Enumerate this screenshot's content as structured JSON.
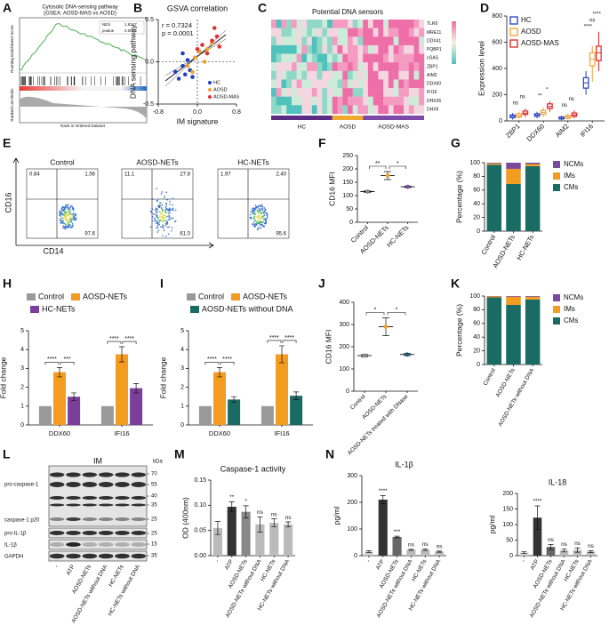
{
  "panels": [
    "A",
    "B",
    "C",
    "D",
    "E",
    "F",
    "G",
    "H",
    "I",
    "J",
    "K",
    "L",
    "M",
    "N"
  ],
  "gsea": {
    "title": "Cytosolic DNA-sensing pathway",
    "subtitle": "(GSEA: AOSD-MAS vs AOSD)",
    "stats": [
      "NES",
      "1.8347",
      "pvalue",
      "0.0015"
    ],
    "ylabel_top": "Running Enrichment Score",
    "ylabel_bottom": "Ranked List Metric",
    "xlabel": "Rank in Ordered Dataset"
  },
  "heatmap": {
    "title": "Potential DNA sensors",
    "rows": [
      "TLR9",
      "MRE11",
      "DDX41",
      "PQBP1",
      "cGAS",
      "ZBP1",
      "AIM2",
      "DDX60",
      "IFI16",
      "DHX36",
      "DHX9"
    ],
    "groups": [
      "HC",
      "AOSD",
      "AOSD-MAS"
    ]
  },
  "flow": {
    "xlabel": "CD14",
    "ylabel": "CD16",
    "plots": [
      {
        "title": "Control",
        "quadrants": [
          "0.84",
          "1.56",
          "97.6"
        ]
      },
      {
        "title": "AOSD-NETs",
        "quadrants": [
          "11.1",
          "27.8",
          "61.0"
        ]
      },
      {
        "title": "HC-NETs",
        "quadrants": [
          "1.97",
          "2.40",
          "95.6"
        ]
      }
    ]
  },
  "blot": {
    "title": "IM",
    "unit": "kDa",
    "bands": [
      "pro-caspase-1",
      "caspase-1 p20",
      "pro-IL-1β",
      "IL-1β",
      "GAPDH"
    ],
    "markers": [
      "70",
      "55",
      "40",
      "35",
      "25",
      "25",
      "15",
      "35"
    ],
    "lanes": [
      "-",
      "ATP",
      "AOSD-NETs",
      "AOSD-NETs without DNA",
      "HC-NETs",
      "HC-NETs without DNA"
    ]
  },
  "chart_data": [
    {
      "type": "scatter",
      "title": "GSVA correlation",
      "xlabel": "IM signature",
      "ylabel": "DNA sensing pathway",
      "annotations": [
        "r = 0.7324",
        "p = 0.0001"
      ],
      "xlim": [
        -0.8,
        0.8
      ],
      "xticks": [
        {
          "value": -0.8,
          "label": "-0.8"
        },
        {
          "value": 0,
          "label": "0.0"
        },
        {
          "value": 0.8,
          "label": "0.8"
        }
      ],
      "ylim": [
        -0.5,
        0.5
      ],
      "yticks": [
        {
          "value": -0.5,
          "label": "-0.5"
        },
        {
          "value": 0,
          "label": "0.0"
        },
        {
          "value": 0.5,
          "label": "0.5"
        }
      ],
      "series": [
        {
          "name": "HC",
          "color": "#2040c0",
          "x": [
            -0.45,
            -0.38,
            -0.3,
            -0.25,
            -0.2,
            -0.15,
            -0.1,
            -0.3
          ],
          "y": [
            -0.12,
            -0.2,
            -0.05,
            -0.15,
            0.02,
            -0.1,
            -0.18,
            0.1
          ]
        },
        {
          "name": "AOSD",
          "color": "#f0a030",
          "x": [
            -0.2,
            -0.05,
            0.05,
            0.15,
            0.2,
            0.3,
            -0.1
          ],
          "y": [
            -0.05,
            0.05,
            0.12,
            0.0,
            0.15,
            0.22,
            -0.12
          ]
        },
        {
          "name": "AOSD-MAS",
          "color": "#e03030",
          "x": [
            0.0,
            0.1,
            0.2,
            0.3,
            0.4,
            0.45,
            0.35
          ],
          "y": [
            0.15,
            0.2,
            0.1,
            0.25,
            0.3,
            0.18,
            0.4
          ]
        }
      ]
    },
    {
      "type": "box",
      "ylabel": "Expression level",
      "categories": [
        "ZBP1",
        "DDX60",
        "AIM2",
        "IFI16"
      ],
      "ylim": [
        0,
        800
      ],
      "yticks": [
        0,
        200,
        400,
        600,
        800
      ],
      "annotations": [
        [
          "ns",
          "ns"
        ],
        [
          "**",
          "*"
        ],
        [
          "ns",
          "ns"
        ],
        [
          "****",
          "ns",
          "****"
        ]
      ],
      "series": [
        {
          "name": "HC",
          "color": "#2040c0",
          "min": [
            10,
            20,
            5,
            200
          ],
          "q1": [
            25,
            35,
            15,
            250
          ],
          "median": [
            35,
            45,
            20,
            290
          ],
          "q3": [
            45,
            55,
            30,
            330
          ],
          "max": [
            60,
            70,
            40,
            380
          ]
        },
        {
          "name": "AOSD",
          "color": "#f0a030",
          "min": [
            15,
            30,
            10,
            300
          ],
          "q1": [
            30,
            50,
            20,
            420
          ],
          "median": [
            40,
            65,
            30,
            470
          ],
          "q3": [
            55,
            80,
            40,
            520
          ],
          "max": [
            70,
            100,
            55,
            570
          ]
        },
        {
          "name": "AOSD-MAS",
          "color": "#e02020",
          "min": [
            30,
            70,
            20,
            380
          ],
          "q1": [
            50,
            95,
            35,
            460
          ],
          "median": [
            60,
            110,
            45,
            520
          ],
          "q3": [
            75,
            130,
            60,
            570
          ],
          "max": [
            95,
            150,
            80,
            680
          ]
        }
      ]
    },
    {
      "type": "dot",
      "ylabel": "CD16 MFI",
      "categories": [
        "Control",
        "AOSD-NETs",
        "HC-NETs"
      ],
      "values": [
        115,
        175,
        133
      ],
      "errors": [
        3,
        15,
        3
      ],
      "colors": [
        "#888888",
        "#f0a030",
        "#7b4a9b"
      ],
      "ylim": [
        0,
        250
      ],
      "yticks": [
        0,
        50,
        100,
        150,
        200,
        250
      ],
      "annotations": [
        "**",
        "*"
      ]
    },
    {
      "type": "stacked",
      "ylabel": "Percentage (%)",
      "categories": [
        "Control",
        "AOSD-NETs",
        "HC-NETs"
      ],
      "ylim": [
        0,
        100
      ],
      "yticks": [
        0,
        20,
        40,
        60,
        80,
        100
      ],
      "series": [
        {
          "name": "CMs",
          "color": "#1a6b63",
          "values": [
            97,
            69,
            95
          ]
        },
        {
          "name": "IMs",
          "color": "#f39c20",
          "values": [
            2,
            22,
            3
          ]
        },
        {
          "name": "NCMs",
          "color": "#7b4a9b",
          "values": [
            1,
            9,
            2
          ]
        }
      ]
    },
    {
      "type": "bar",
      "ylabel": "Fold change",
      "categories": [
        "DDX60",
        "IFI16"
      ],
      "ylim": [
        0,
        5
      ],
      "yticks": [
        0,
        1,
        2,
        3,
        4,
        5
      ],
      "annotations": [
        "****",
        "***",
        "****",
        "****"
      ],
      "series": [
        {
          "name": "Control",
          "color": "#999999",
          "values": [
            1,
            1
          ],
          "errors": [
            0,
            0
          ]
        },
        {
          "name": "AOSD-NETs",
          "color": "#f39c20",
          "values": [
            2.8,
            3.75
          ],
          "errors": [
            0.25,
            0.4
          ]
        },
        {
          "name": "HC-NETs",
          "color": "#7b3f9b",
          "values": [
            1.5,
            1.95
          ],
          "errors": [
            0.2,
            0.25
          ]
        }
      ]
    },
    {
      "type": "bar",
      "ylabel": "Fold change",
      "categories": [
        "DDX60",
        "IFI16"
      ],
      "ylim": [
        0,
        5
      ],
      "yticks": [
        0,
        1,
        2,
        3,
        4,
        5
      ],
      "annotations": [
        "****",
        "****",
        "****",
        "****"
      ],
      "series": [
        {
          "name": "Control",
          "color": "#999999",
          "values": [
            1,
            1
          ],
          "errors": [
            0,
            0
          ]
        },
        {
          "name": "AOSD-NETs",
          "color": "#f39c20",
          "values": [
            2.8,
            3.75
          ],
          "errors": [
            0.25,
            0.45
          ]
        },
        {
          "name": "AOSD-NETs without DNA",
          "color": "#1a6b63",
          "values": [
            1.35,
            1.55
          ],
          "errors": [
            0.15,
            0.2
          ]
        }
      ]
    },
    {
      "type": "dot",
      "ylabel": "CD16 MFI",
      "categories": [
        "Control",
        "AOSD-NETs",
        "AOSD-NETs treated with DNase"
      ],
      "values": [
        160,
        290,
        165
      ],
      "errors": [
        5,
        40,
        5
      ],
      "colors": [
        "#888888",
        "#f0a030",
        "#1a5b73"
      ],
      "ylim": [
        0,
        400
      ],
      "yticks": [
        0,
        100,
        200,
        300,
        400
      ],
      "annotations": [
        "*",
        "*"
      ]
    },
    {
      "type": "stacked",
      "ylabel": "Percentage (%)",
      "categories": [
        "Control",
        "AOSD-NETs",
        "AOSD-NETs without DNA"
      ],
      "ylim": [
        0,
        100
      ],
      "yticks": [
        0,
        20,
        40,
        60,
        80,
        100
      ],
      "series": [
        {
          "name": "CMs",
          "color": "#1a6b63",
          "values": [
            98,
            87,
            95
          ]
        },
        {
          "name": "IMs",
          "color": "#f39c20",
          "values": [
            1.5,
            12,
            4
          ]
        },
        {
          "name": "NCMs",
          "color": "#7b4a9b",
          "values": [
            0.5,
            1,
            1
          ]
        }
      ]
    },
    {
      "type": "single",
      "title": "Caspase-1 activity",
      "ylabel": "OD (400nm)",
      "categories": [
        "-",
        "ATP",
        "AOSD-NETs",
        "AOSD-NETs without DNA",
        "HC-NETs",
        "HC-NETs without DNA"
      ],
      "values": [
        0.055,
        0.097,
        0.087,
        0.062,
        0.065,
        0.062
      ],
      "errors": [
        0.013,
        0.01,
        0.012,
        0.015,
        0.008,
        0.005
      ],
      "colors": [
        "#bbbbbb",
        "#333333",
        "#888888",
        "#bbbbbb",
        "#bbbbbb",
        "#bbbbbb"
      ],
      "annotations": [
        null,
        "**",
        "*",
        "ns",
        "ns",
        "ns"
      ],
      "ylim": [
        0,
        0.15
      ],
      "yticks": [
        {
          "value": 0,
          "label": "0.00"
        },
        {
          "value": 0.05,
          "label": "0.05"
        },
        {
          "value": 0.1,
          "label": "0.10"
        },
        {
          "value": 0.15,
          "label": "0.15"
        }
      ]
    },
    {
      "type": "single",
      "title": "IL-1β",
      "ylabel": "pg/ml",
      "categories": [
        "-",
        "ATP",
        "AOSD-NETs",
        "AOSD-NETs without DNA",
        "HC-NETs",
        "HC-NETs without DNA"
      ],
      "values": [
        15,
        210,
        70,
        22,
        22,
        15
      ],
      "errors": [
        3,
        15,
        3,
        2,
        3,
        2
      ],
      "colors": [
        "#cccccc",
        "#333333",
        "#666666",
        "#bbbbbb",
        "#bbbbbb",
        "#bbbbbb"
      ],
      "annotations": [
        null,
        "****",
        "***",
        "ns",
        "ns",
        "ns"
      ],
      "ylim": [
        0,
        300
      ],
      "yticks": [
        0,
        100,
        200,
        300
      ]
    },
    {
      "type": "single",
      "title": "IL-18",
      "ylabel": "pg/ml",
      "categories": [
        "-",
        "ATP",
        "AOSD-NETs",
        "AOSD-NETs without DNA",
        "HC-NETs",
        "HC-NETs without DNA"
      ],
      "values": [
        10,
        122,
        28,
        17,
        18,
        13
      ],
      "errors": [
        3,
        38,
        8,
        5,
        7,
        3
      ],
      "colors": [
        "#cccccc",
        "#333333",
        "#666666",
        "#bbbbbb",
        "#bbbbbb",
        "#bbbbbb"
      ],
      "annotations": [
        null,
        "****",
        "ns",
        "ns",
        "ns",
        "ns"
      ],
      "ylim": [
        0,
        200
      ],
      "yticks": [
        0,
        50,
        100,
        150,
        200
      ]
    }
  ]
}
